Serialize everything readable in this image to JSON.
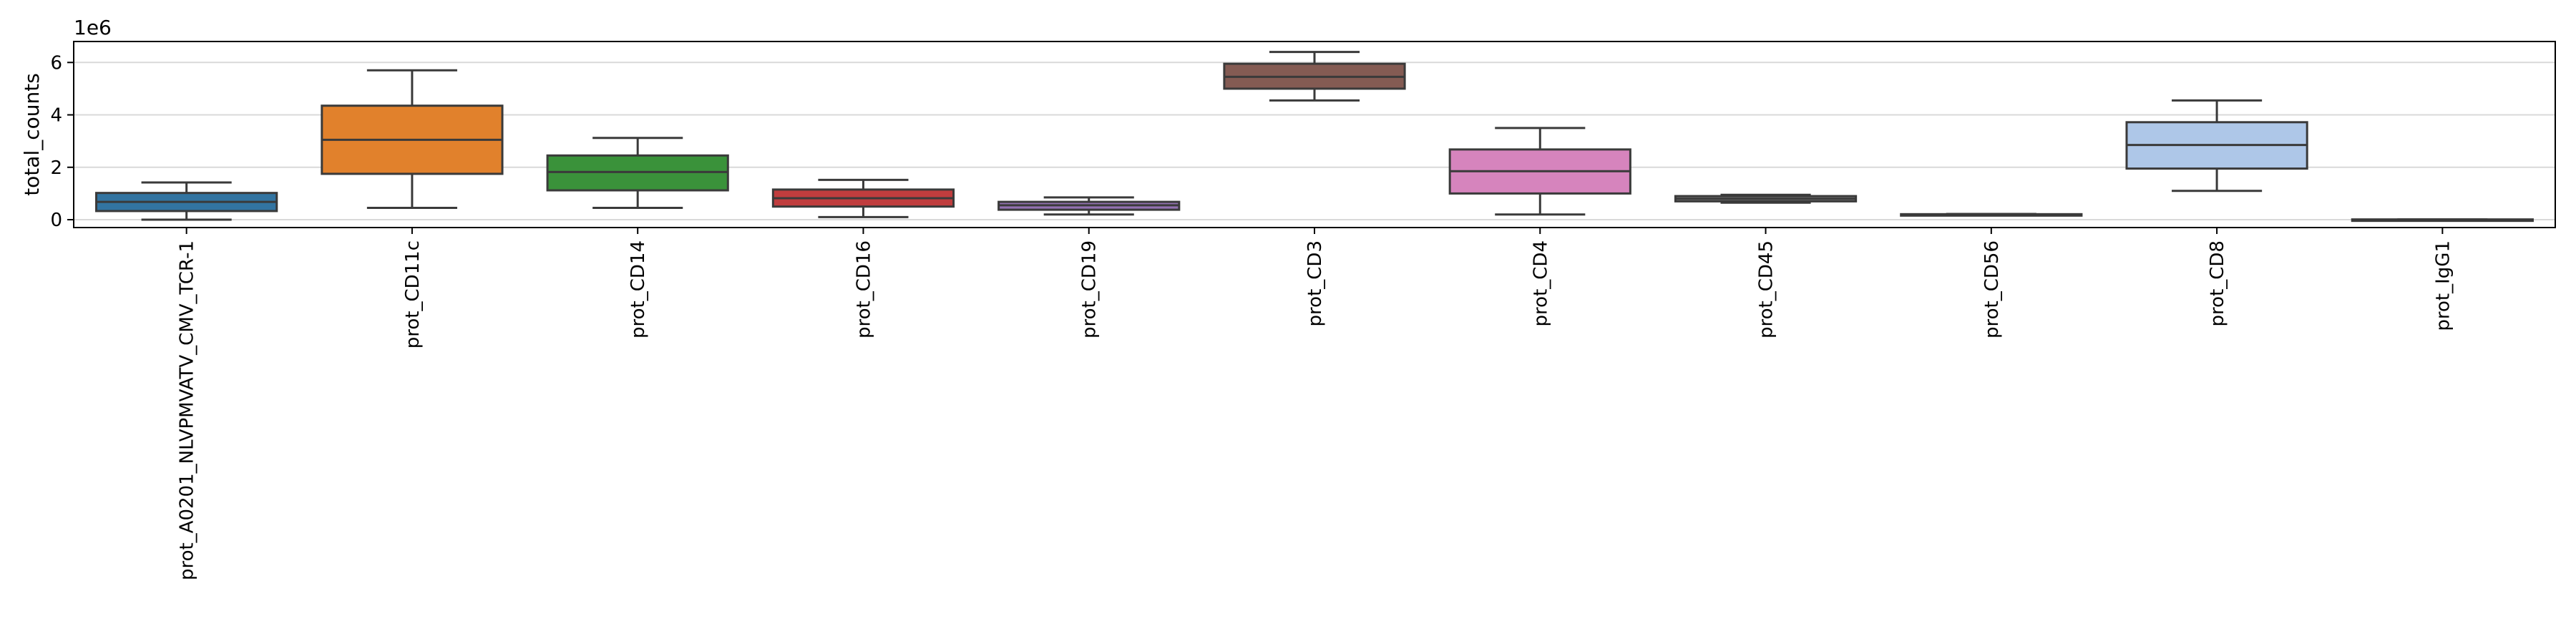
{
  "chart_data": {
    "type": "boxplot",
    "ylabel": "total_counts",
    "y_offset_label": "1e6",
    "ylim": [
      -0.3,
      6.8
    ],
    "yticks": [
      0,
      2,
      4,
      6
    ],
    "grid": "horizontal",
    "series": [
      {
        "label": "prot_A0201_NLVPMVATV_CMV_TCR-1",
        "color": "#3274a1",
        "min": 0.0,
        "q1": 0.33,
        "median": 0.68,
        "q3": 1.02,
        "max": 1.42
      },
      {
        "label": "prot_CD11c",
        "color": "#e1812c",
        "min": 0.45,
        "q1": 1.75,
        "median": 3.05,
        "q3": 4.35,
        "max": 5.7
      },
      {
        "label": "prot_CD14",
        "color": "#3a923a",
        "min": 0.45,
        "q1": 1.12,
        "median": 1.82,
        "q3": 2.45,
        "max": 3.12
      },
      {
        "label": "prot_CD16",
        "color": "#c03d3e",
        "min": 0.1,
        "q1": 0.5,
        "median": 0.82,
        "q3": 1.15,
        "max": 1.52
      },
      {
        "label": "prot_CD19",
        "color": "#9372b2",
        "min": 0.2,
        "q1": 0.38,
        "median": 0.55,
        "q3": 0.68,
        "max": 0.85
      },
      {
        "label": "prot_CD3",
        "color": "#845b53",
        "min": 4.55,
        "q1": 5.0,
        "median": 5.45,
        "q3": 5.95,
        "max": 6.4
      },
      {
        "label": "prot_CD4",
        "color": "#d684bd",
        "min": 0.2,
        "q1": 1.0,
        "median": 1.85,
        "q3": 2.68,
        "max": 3.5
      },
      {
        "label": "prot_CD45",
        "color": "#7f7f7f",
        "min": 0.65,
        "q1": 0.7,
        "median": 0.8,
        "q3": 0.9,
        "max": 0.95
      },
      {
        "label": "prot_CD56",
        "color": "#a9aa35",
        "min": 0.18,
        "q1": 0.19,
        "median": 0.2,
        "q3": 0.21,
        "max": 0.22
      },
      {
        "label": "prot_CD8",
        "color": "#aec7e8",
        "min": 1.1,
        "q1": 1.95,
        "median": 2.85,
        "q3": 3.72,
        "max": 4.55
      },
      {
        "label": "prot_IgG1",
        "color": "#3aa6b0",
        "min": 0.0,
        "q1": 0.0,
        "median": 0.0,
        "q3": 0.01,
        "max": 0.01
      }
    ]
  }
}
